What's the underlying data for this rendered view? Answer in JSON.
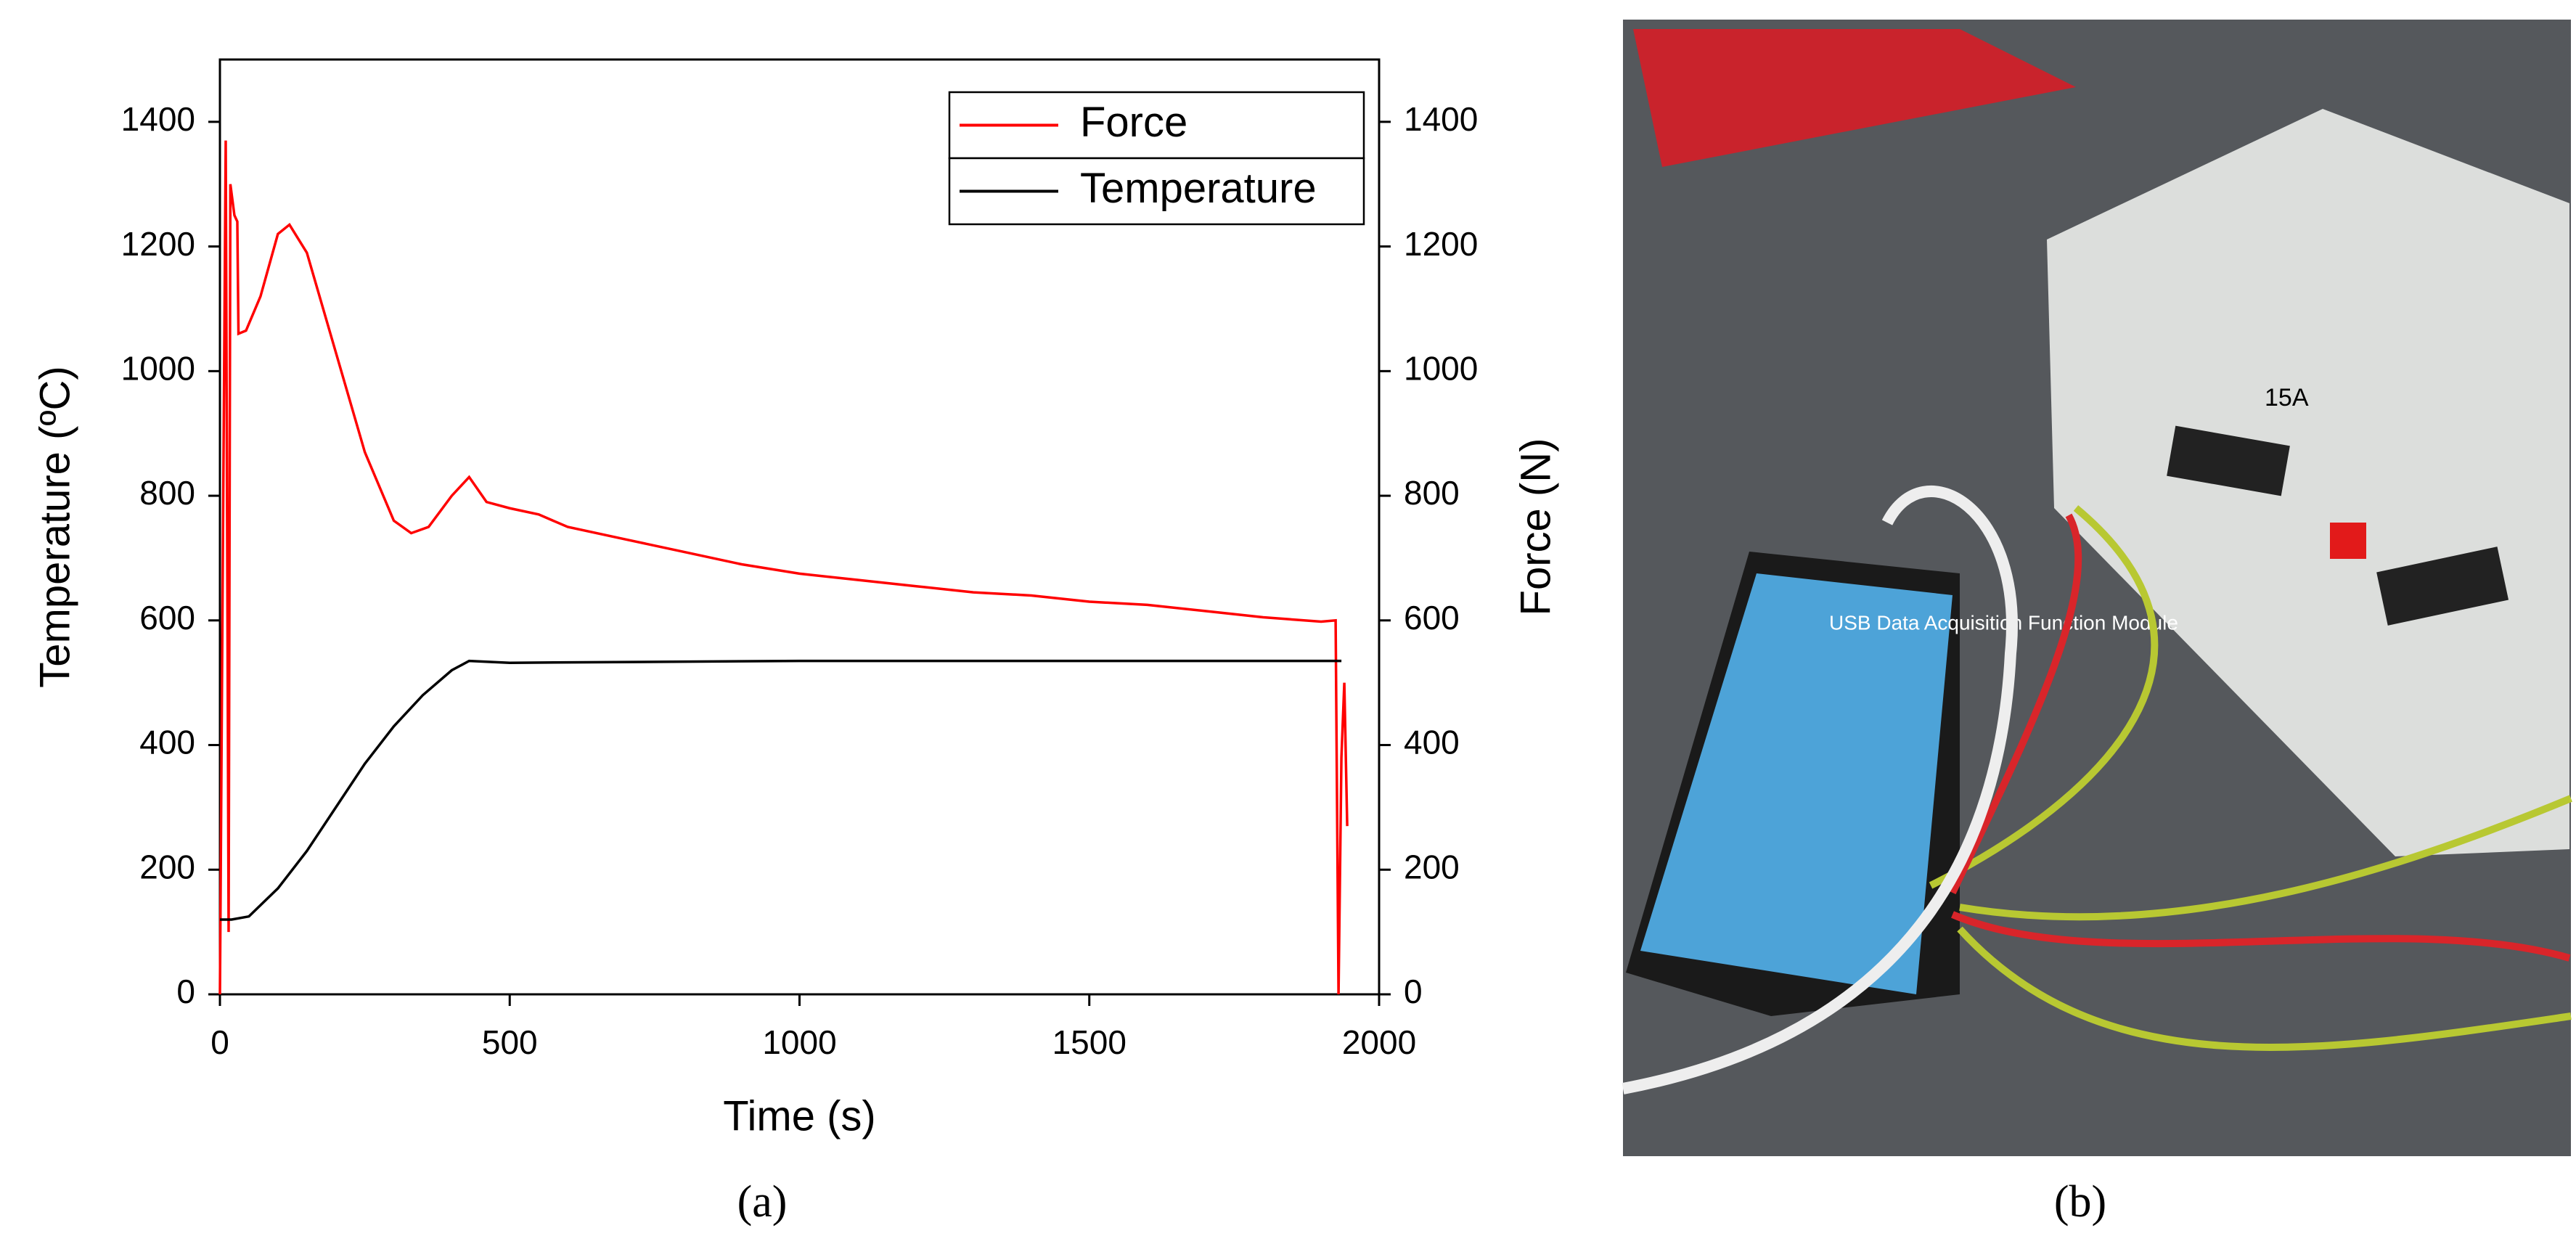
{
  "chart_data": {
    "type": "line",
    "xlabel": "Time (s)",
    "ylabel": "Temperature (ºC)",
    "y2label": "Force (N)",
    "xlim": [
      0,
      2000
    ],
    "xticks": [
      0,
      500,
      1000,
      1500,
      2000
    ],
    "ylim": [
      0,
      1500
    ],
    "yticks": [
      0,
      200,
      400,
      600,
      800,
      1000,
      1200,
      1400
    ],
    "y2lim": [
      0,
      1500
    ],
    "y2ticks": [
      0,
      200,
      400,
      600,
      800,
      1000,
      1200,
      1400
    ],
    "legend": "upper right",
    "series": [
      {
        "name": "Force",
        "color": "#ff0000",
        "axis": "y2",
        "x": [
          0,
          5,
          10,
          15,
          18,
          25,
          30,
          32,
          45,
          70,
          100,
          120,
          150,
          200,
          250,
          300,
          330,
          360,
          400,
          430,
          460,
          500,
          550,
          600,
          700,
          800,
          900,
          1000,
          1100,
          1200,
          1300,
          1400,
          1500,
          1600,
          1700,
          1800,
          1900,
          1925,
          1930,
          1935,
          1940,
          1945
        ],
        "values": [
          0,
          700,
          1370,
          100,
          1300,
          1250,
          1240,
          1060,
          1065,
          1120,
          1220,
          1235,
          1190,
          1030,
          870,
          760,
          740,
          750,
          800,
          830,
          790,
          780,
          770,
          750,
          730,
          710,
          690,
          675,
          665,
          655,
          645,
          640,
          630,
          625,
          615,
          605,
          598,
          600,
          0,
          380,
          500,
          270
        ]
      },
      {
        "name": "Temperature",
        "color": "#000000",
        "x": [
          0,
          20,
          50,
          100,
          150,
          200,
          250,
          300,
          350,
          400,
          430,
          500,
          1000,
          1500,
          1900,
          1935
        ],
        "values": [
          120,
          120,
          125,
          170,
          230,
          300,
          370,
          430,
          480,
          520,
          535,
          532,
          535,
          535,
          535,
          535
        ]
      }
    ]
  },
  "panel_labels": [
    "(a)",
    "(b)"
  ],
  "photo": {
    "module_label": "USB Data Acquisition Function Module",
    "tag": "15A"
  }
}
